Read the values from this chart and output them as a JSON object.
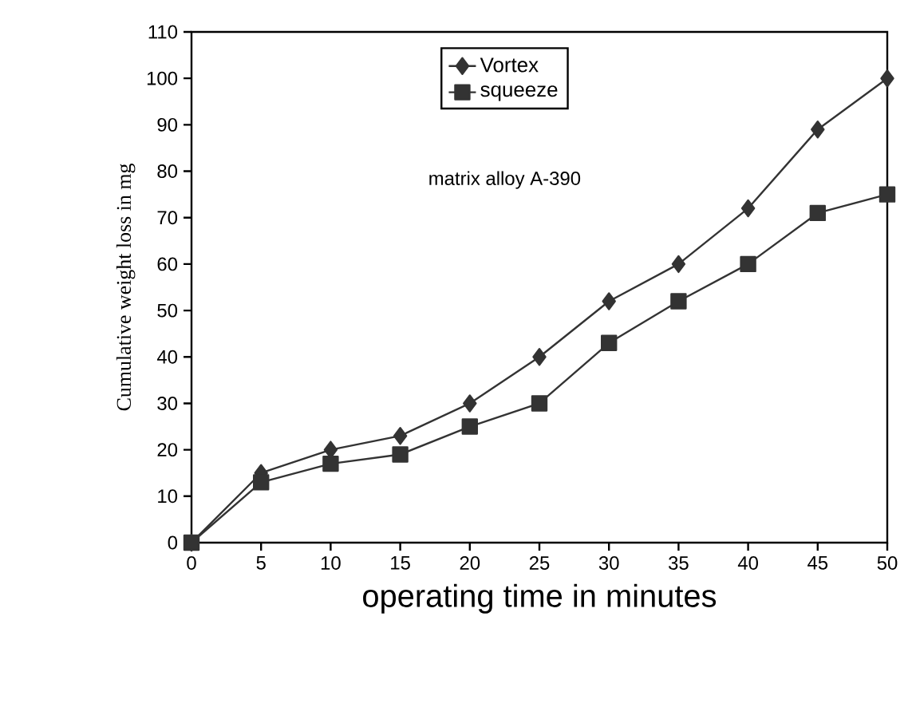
{
  "chart_data": {
    "type": "line",
    "xlabel": "operating time in minutes",
    "ylabel": "Cumulative weight loss in mg",
    "annotations": [
      "matrix alloy A-390"
    ],
    "x": [
      0,
      5,
      10,
      15,
      20,
      25,
      30,
      35,
      40,
      45,
      50
    ],
    "series": [
      {
        "name": "Vortex",
        "color": "#333333",
        "marker": "diamond",
        "values": [
          0,
          15,
          20,
          23,
          30,
          40,
          52,
          60,
          72,
          89,
          100
        ]
      },
      {
        "name": "squeeze",
        "color": "#333333",
        "marker": "square",
        "values": [
          0,
          13,
          17,
          19,
          25,
          30,
          43,
          52,
          60,
          71,
          75
        ]
      }
    ],
    "xlim": [
      0,
      50
    ],
    "xticks": [
      0,
      5,
      10,
      15,
      20,
      25,
      30,
      35,
      40,
      45,
      50
    ],
    "ylim": [
      0,
      110
    ],
    "yticks": [
      0,
      10,
      20,
      30,
      40,
      50,
      60,
      70,
      80,
      90,
      100,
      110
    ],
    "legend": "top",
    "grid": false,
    "line_style": "solid"
  }
}
